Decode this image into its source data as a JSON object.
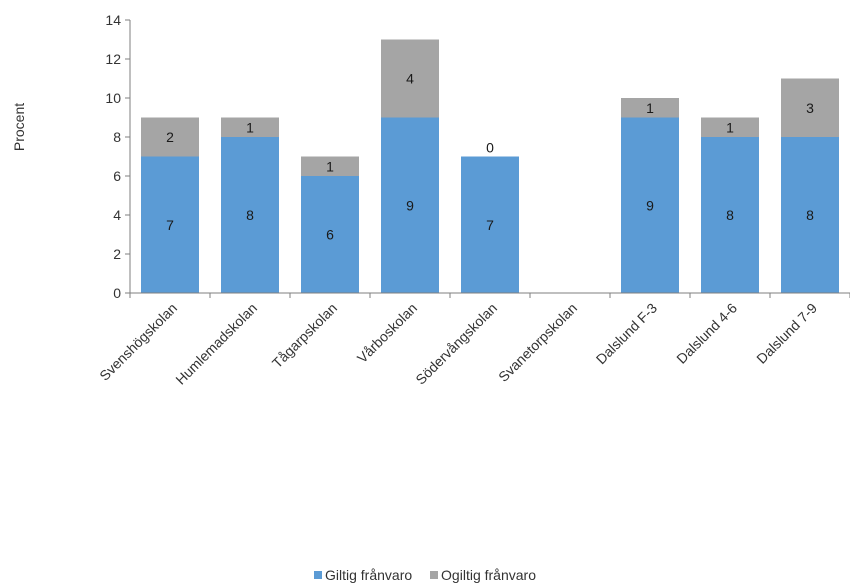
{
  "chart_data": {
    "type": "bar",
    "stacked": true,
    "title": "",
    "xlabel": "",
    "ylabel": "Procent",
    "ylim": [
      0,
      14
    ],
    "yticks": [
      0,
      2,
      4,
      6,
      8,
      10,
      12,
      14
    ],
    "grid": false,
    "legend_position": "bottom",
    "categories": [
      "Svenshögskolan",
      "Humlemadskolan",
      "Tågarpskolan",
      "Vårboskolan",
      "Södervångskolan",
      "Svanetorpskolan",
      "Dalslund F-3",
      "Dalslund 4-6",
      "Dalslund 7-9"
    ],
    "series": [
      {
        "name": "Giltig frånvaro",
        "color": "#5b9bd5",
        "values": [
          7,
          8,
          6,
          9,
          7,
          null,
          9,
          8,
          8
        ]
      },
      {
        "name": "Ogiltig frånvaro",
        "color": "#a5a5a5",
        "values": [
          2,
          1,
          1,
          4,
          0,
          null,
          1,
          1,
          3
        ]
      }
    ]
  }
}
